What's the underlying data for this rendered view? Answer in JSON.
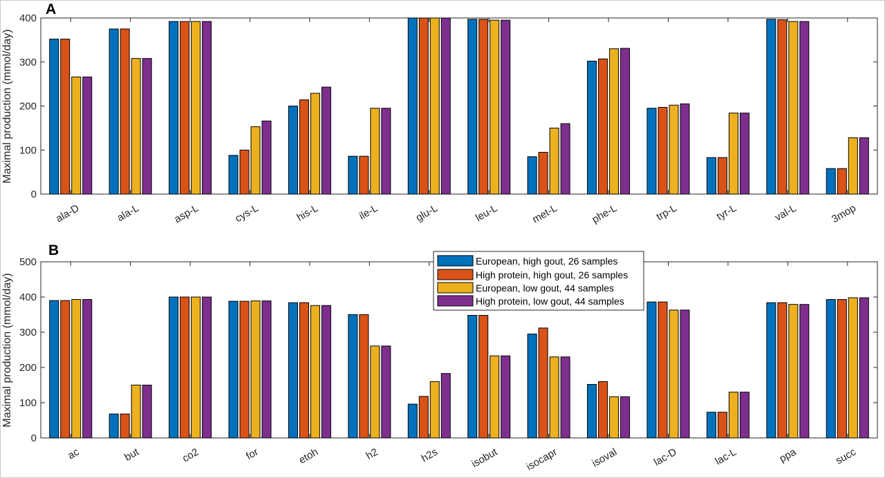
{
  "figure": {
    "panels": [
      "A",
      "B"
    ]
  },
  "legend": {
    "placement": "upper-center of panel B",
    "entries": [
      "European, high gout,  26 samples",
      "High protein, high gout,  26 samples",
      "European, low gout,  44 samples",
      "High protein, low gout,  44 samples"
    ]
  },
  "series_colors": [
    "#0072BD",
    "#D95319",
    "#EDB120",
    "#7E2F8E"
  ],
  "chart_data": [
    {
      "type": "bar",
      "panel": "A",
      "ylabel": "Maximal production (mmol/day)",
      "ylim": [
        0,
        400
      ],
      "yticks": [
        "0",
        "100",
        "200",
        "300",
        "400"
      ],
      "grid": false,
      "categories": [
        "ala-D",
        "ala-L",
        "asp-L",
        "cys-L",
        "his-L",
        "ile-L",
        "glu-L",
        "leu-L",
        "met-L",
        "phe-L",
        "trp-L",
        "tyr-L",
        "val-L",
        "3mop"
      ],
      "series": [
        {
          "name": "European, high gout,  26 samples",
          "values": [
            352,
            375,
            392,
            88,
            200,
            86,
            400,
            397,
            85,
            302,
            195,
            83,
            397,
            58
          ]
        },
        {
          "name": "High protein, high gout,  26 samples",
          "values": [
            352,
            375,
            392,
            100,
            214,
            86,
            400,
            397,
            95,
            307,
            197,
            83,
            396,
            58
          ]
        },
        {
          "name": "European, low gout,  44 samples",
          "values": [
            266,
            308,
            392,
            153,
            229,
            195,
            400,
            395,
            150,
            330,
            202,
            184,
            392,
            128
          ]
        },
        {
          "name": "High protein, low gout,  44 samples",
          "values": [
            266,
            308,
            392,
            166,
            243,
            195,
            400,
            395,
            160,
            331,
            205,
            184,
            392,
            128
          ]
        }
      ]
    },
    {
      "type": "bar",
      "panel": "B",
      "ylabel": "Maximal production (mmol/day)",
      "ylim": [
        0,
        500
      ],
      "yticks": [
        "0",
        "100",
        "200",
        "300",
        "400",
        "500"
      ],
      "grid": false,
      "categories": [
        "ac",
        "but",
        "co2",
        "for",
        "etoh",
        "h2",
        "h2s",
        "isobut",
        "isocapr",
        "isoval",
        "lac-D",
        "lac-L",
        "ppa",
        "succ"
      ],
      "series": [
        {
          "name": "European, high gout,  26 samples",
          "values": [
            390,
            68,
            400,
            388,
            384,
            350,
            96,
            348,
            295,
            152,
            386,
            73,
            384,
            393
          ]
        },
        {
          "name": "High protein, high gout,  26 samples",
          "values": [
            390,
            68,
            400,
            388,
            384,
            350,
            118,
            348,
            312,
            160,
            386,
            73,
            384,
            393
          ]
        },
        {
          "name": "European, low gout,  44 samples",
          "values": [
            393,
            150,
            400,
            389,
            376,
            261,
            160,
            233,
            230,
            117,
            363,
            130,
            379,
            398
          ]
        },
        {
          "name": "High protein, low gout,  44 samples",
          "values": [
            393,
            150,
            400,
            389,
            376,
            261,
            183,
            233,
            230,
            117,
            363,
            130,
            379,
            398
          ]
        }
      ]
    }
  ]
}
